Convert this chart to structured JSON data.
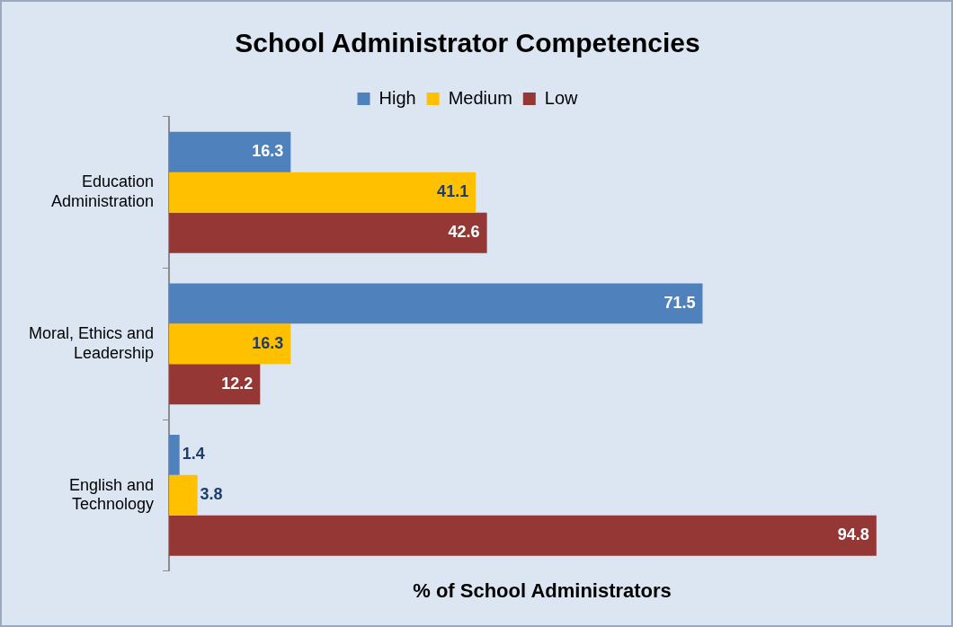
{
  "chart_data": {
    "type": "bar",
    "orientation": "horizontal",
    "title": "School Administrator Competencies",
    "xlabel": "% of School Administrators",
    "categories": [
      "Education Administration",
      "Moral, Ethics and Leadership",
      "English and Technology"
    ],
    "series": [
      {
        "name": "High",
        "color": "#4f81bd",
        "values": [
          16.3,
          71.5,
          1.4
        ]
      },
      {
        "name": "Medium",
        "color": "#ffc000",
        "values": [
          41.1,
          16.3,
          3.8
        ]
      },
      {
        "name": "Low",
        "color": "#953735",
        "values": [
          42.6,
          12.2,
          94.8
        ]
      }
    ],
    "data_labels": true,
    "legend": "top",
    "grid": false,
    "tick_labels": "y"
  }
}
